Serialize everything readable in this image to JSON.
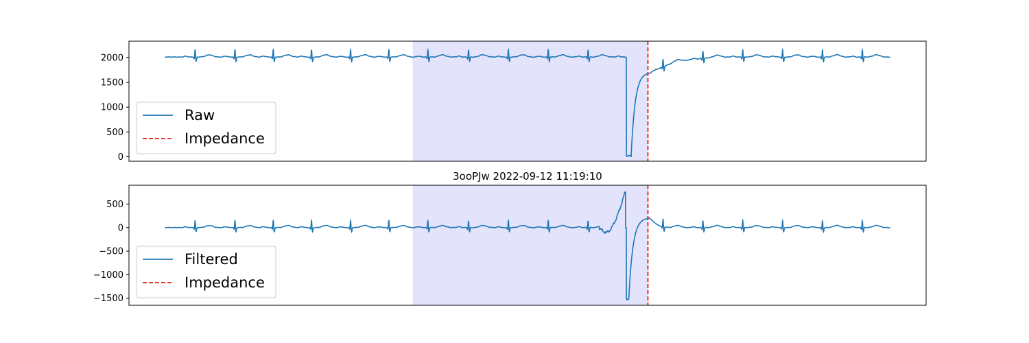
{
  "colors": {
    "signal": "#1f77b4",
    "impedance": "#e41a1c",
    "highlight": "#e3e3fb",
    "axes": "#000000",
    "legend_border": "#cccccc"
  },
  "chart_data": [
    {
      "type": "line",
      "title": "",
      "xlabel": "",
      "ylabel": "",
      "ylim": [
        -90,
        2330
      ],
      "yticks": [
        0,
        500,
        1000,
        1500,
        2000
      ],
      "ytick_labels": [
        "0",
        "500",
        "1000",
        "1500",
        "2000"
      ],
      "xlim": [
        0,
        1
      ],
      "xticks_visible": false,
      "x_data_range": [
        0.045,
        0.955
      ],
      "shaded_region": [
        0.356,
        0.651
      ],
      "impedance_x": 0.651,
      "legend": {
        "position": "lower-left",
        "entries": [
          "Raw",
          "Impedance"
        ]
      },
      "grid": false,
      "series": [
        {
          "name": "Raw",
          "style": "solid",
          "model": "ecg",
          "baseline": 2010,
          "beat_amplitude": 150,
          "beat_positions": [
            0.083,
            0.133,
            0.181,
            0.229,
            0.278,
            0.326,
            0.375,
            0.426,
            0.476,
            0.526,
            0.576,
            0.626,
            0.67,
            0.72,
            0.77,
            0.82,
            0.87,
            0.92
          ],
          "events": [
            {
              "type": "drop",
              "x": 0.624,
              "to": 20,
              "hold_until": 0.63,
              "recover_to": 1690,
              "recover_until": 0.655
            },
            {
              "type": "settle",
              "from": 1690,
              "to": 2010,
              "x_start": 0.655,
              "x_end": 0.75
            }
          ]
        },
        {
          "name": "Impedance",
          "style": "dashed",
          "x": 0.651
        }
      ]
    },
    {
      "type": "line",
      "title": "3ooPJw 2022-09-12 11:19:10",
      "xlabel": "",
      "ylabel": "",
      "ylim": [
        -1650,
        900
      ],
      "yticks": [
        500,
        0,
        -500,
        -1000,
        -1500
      ],
      "ytick_labels": [
        "500",
        "0",
        "−500",
        "−1000",
        "−1500"
      ],
      "xlim": [
        0,
        1
      ],
      "xticks_visible": false,
      "x_data_range": [
        0.045,
        0.955
      ],
      "shaded_region": [
        0.356,
        0.651
      ],
      "impedance_x": 0.651,
      "legend": {
        "position": "lower-left",
        "entries": [
          "Filtered",
          "Impedance"
        ]
      },
      "grid": false,
      "series": [
        {
          "name": "Filtered",
          "style": "solid",
          "model": "ecg",
          "baseline": 0,
          "beat_amplitude": 150,
          "beat_positions": [
            0.083,
            0.133,
            0.181,
            0.229,
            0.278,
            0.326,
            0.375,
            0.426,
            0.476,
            0.526,
            0.576,
            0.626,
            0.67,
            0.72,
            0.77,
            0.82,
            0.87,
            0.92
          ],
          "events": [
            {
              "type": "ramp",
              "x_start": 0.59,
              "x_end": 0.623,
              "dip": -100,
              "peak": 800
            },
            {
              "type": "drop",
              "x": 0.624,
              "to": -1520,
              "hold_until": 0.627,
              "recover_to": 200,
              "recover_until": 0.653
            },
            {
              "type": "settle",
              "from": 200,
              "to": 0,
              "x_start": 0.653,
              "x_end": 0.68
            }
          ]
        },
        {
          "name": "Impedance",
          "style": "dashed",
          "x": 0.651
        }
      ]
    }
  ]
}
